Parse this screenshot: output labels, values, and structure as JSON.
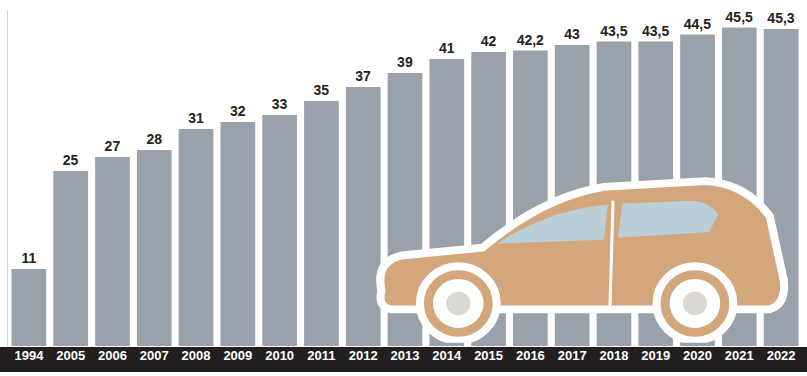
{
  "chart_data": {
    "type": "bar",
    "categories": [
      "1994",
      "2005",
      "2006",
      "2007",
      "2008",
      "2009",
      "2010",
      "2011",
      "2012",
      "2013",
      "2014",
      "2015",
      "2016",
      "2017",
      "2018",
      "2019",
      "2020",
      "2021",
      "2022"
    ],
    "values": [
      11,
      25,
      27,
      28,
      31,
      32,
      33,
      35,
      37,
      39,
      41,
      42,
      42.2,
      43,
      43.5,
      43.5,
      44.5,
      45.5,
      45.3
    ],
    "value_labels": [
      "11",
      "25",
      "27",
      "28",
      "31",
      "32",
      "33",
      "35",
      "37",
      "39",
      "41",
      "42",
      "42,2",
      "43",
      "43,5",
      "43,5",
      "44,5",
      "45,5",
      "45,3"
    ],
    "color": "#99a2ab",
    "ylim": [
      0,
      48
    ],
    "grid": false,
    "data_labels": true,
    "tick_labels": "x"
  }
}
